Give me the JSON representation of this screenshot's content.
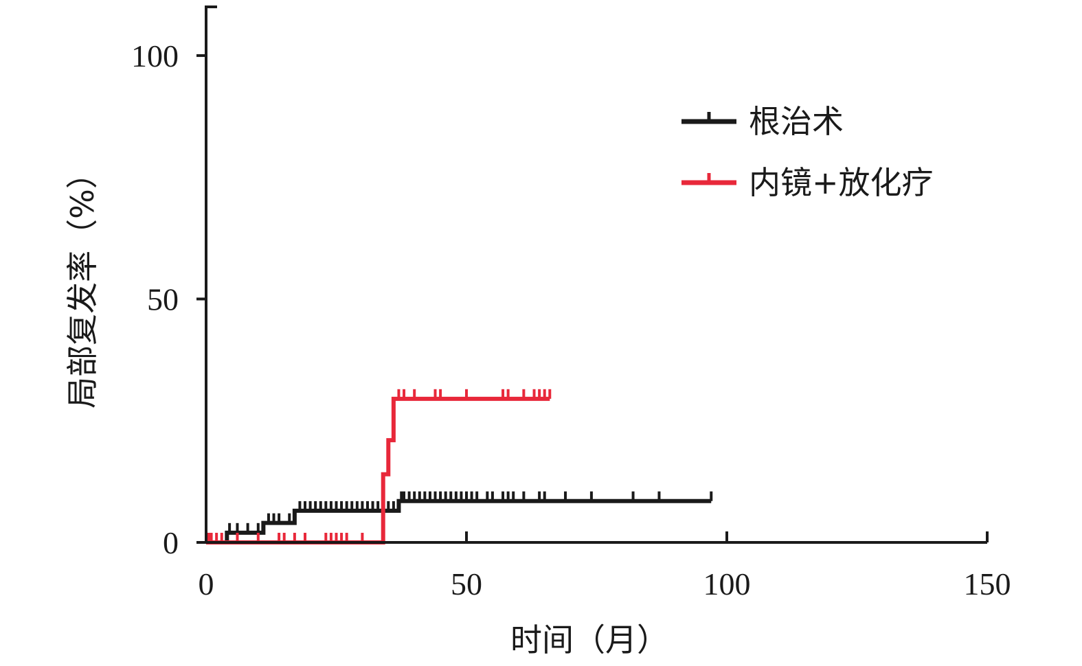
{
  "chart_data": {
    "type": "line",
    "step": true,
    "xlabel": "时间（月）",
    "ylabel": "局部复发率（%）",
    "xlim": [
      0,
      150
    ],
    "ylim": [
      0,
      110
    ],
    "xticks": [
      0,
      50,
      100,
      150
    ],
    "xtick_labels": [
      "0",
      "50",
      "100",
      "150"
    ],
    "yticks": [
      0,
      50,
      100
    ],
    "ytick_labels": [
      "0",
      "50",
      "100"
    ],
    "grid": false,
    "legend_position": "top-right",
    "series": [
      {
        "name": "根治术",
        "color": "#1a1a1a",
        "steps": [
          [
            0,
            0
          ],
          [
            4,
            2
          ],
          [
            11,
            4
          ],
          [
            17,
            6.5
          ],
          [
            37,
            8.5
          ],
          [
            97,
            8.5
          ]
        ],
        "censored": [
          4.5,
          6,
          8,
          10,
          12,
          13,
          14,
          16,
          18,
          19,
          20,
          21,
          22,
          23,
          24,
          25,
          26,
          27,
          28,
          29,
          30,
          31,
          32,
          33,
          34,
          35,
          36,
          37.5,
          38,
          39,
          40,
          41,
          42,
          43,
          44,
          45,
          46,
          47,
          48,
          49,
          50,
          51,
          52,
          54,
          55,
          57,
          58,
          59,
          61,
          64,
          65,
          69,
          74,
          82,
          87,
          97
        ]
      },
      {
        "name": "内镜+放化疗",
        "color": "#e8283a",
        "steps": [
          [
            0,
            0
          ],
          [
            33,
            0
          ],
          [
            34,
            14
          ],
          [
            35,
            21
          ],
          [
            36,
            29.5
          ],
          [
            66,
            29.5
          ]
        ],
        "censored": [
          0.5,
          1,
          2,
          3,
          6,
          10,
          14,
          15,
          17,
          19,
          23,
          24,
          25,
          26,
          27,
          30,
          37,
          38,
          40,
          44,
          45,
          50,
          57,
          58,
          61,
          63,
          64,
          65,
          66
        ]
      }
    ]
  }
}
